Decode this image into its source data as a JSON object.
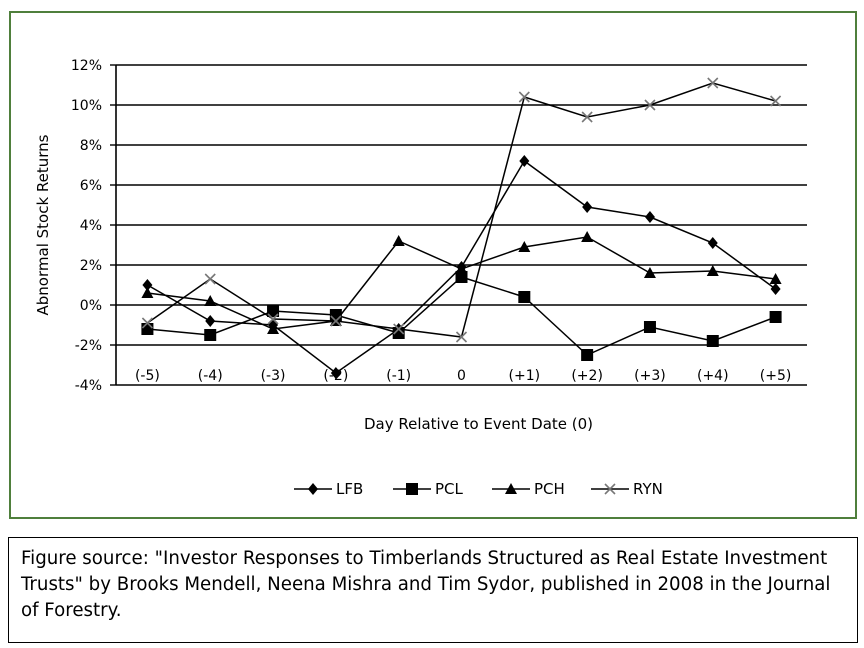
{
  "chart_data": {
    "type": "line",
    "title": "",
    "xlabel": "Day Relative to Event Date (0)",
    "ylabel": "Abnormal Stock Returns",
    "ylim": [
      -4,
      12
    ],
    "yticks": [
      -4,
      -2,
      0,
      2,
      4,
      6,
      8,
      10,
      12
    ],
    "ytick_labels": [
      "-4%",
      "-2%",
      "0%",
      "2%",
      "4%",
      "6%",
      "8%",
      "10%",
      "12%"
    ],
    "categories": [
      "(-5)",
      "(-4)",
      "(-3)",
      "(-2)",
      "(-1)",
      "0",
      "(+1)",
      "(+2)",
      "(+3)",
      "(+4)",
      "(+5)"
    ],
    "grid": true,
    "legend_position": "bottom",
    "series": [
      {
        "name": "LFB",
        "marker": "diamond",
        "values": [
          1.0,
          -0.8,
          -1.0,
          -3.4,
          -1.2,
          1.9,
          7.2,
          4.9,
          4.4,
          3.1,
          0.8
        ]
      },
      {
        "name": "PCL",
        "marker": "square",
        "values": [
          -1.2,
          -1.5,
          -0.3,
          -0.5,
          -1.4,
          1.4,
          0.4,
          -2.5,
          -1.1,
          -1.8,
          -0.6
        ]
      },
      {
        "name": "PCH",
        "marker": "triangle",
        "values": [
          0.6,
          0.2,
          -1.2,
          -0.8,
          3.2,
          1.8,
          2.9,
          3.4,
          1.6,
          1.7,
          1.3
        ]
      },
      {
        "name": "RYN",
        "marker": "x",
        "values": [
          -0.9,
          1.3,
          -0.7,
          -0.8,
          -1.2,
          -1.6,
          10.4,
          9.4,
          10.0,
          11.1,
          10.2
        ]
      }
    ]
  },
  "caption": {
    "text": "Figure source: \"Investor Responses to Timberlands Structured as Real Estate Investment Trusts\" by Brooks Mendell, Neena Mishra and Tim Sydor, published in 2008 in the Journal of Forestry."
  }
}
